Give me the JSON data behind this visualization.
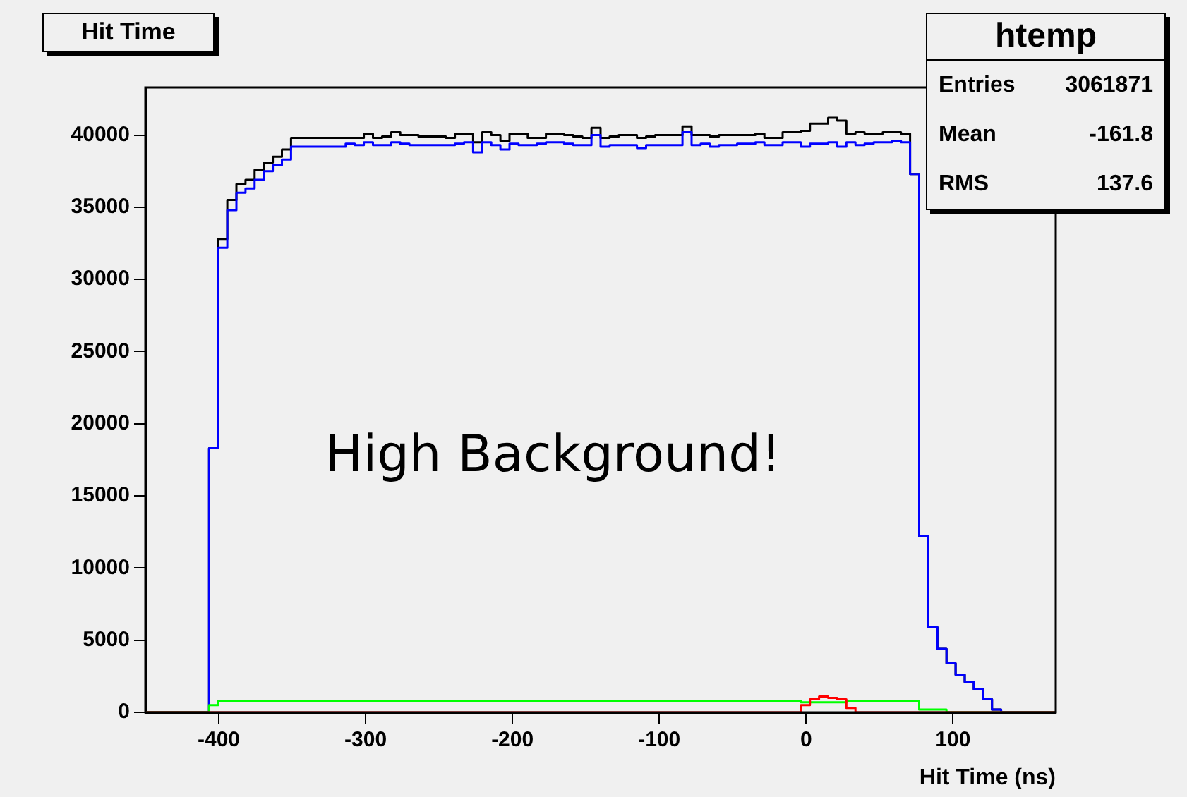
{
  "chart_data": {
    "type": "histogram",
    "title": "Hit Time",
    "xlabel": "Hit Time (ns)",
    "annotations": [
      "High Background!",
      "htemp",
      "Entries",
      "3061871",
      "Mean",
      "-161.8",
      "RMS",
      "137.6"
    ],
    "bins": [
      -450,
      -443.8,
      -437.6,
      -431.4,
      -425.2,
      -419,
      -412.8,
      -406.6,
      -400.4,
      -394.2,
      -388,
      -381.8,
      -375.6,
      -369.4,
      -363.2,
      -357,
      -350.8,
      -344.6,
      -338.4,
      -332.2,
      -326,
      -319.8,
      -313.6,
      -307.4,
      -301.2,
      -295,
      -288.8,
      -282.6,
      -276.4,
      -270.2,
      -264,
      -257.8,
      -251.6,
      -245.4,
      -239.2,
      -233,
      -226.8,
      -220.6,
      -214.4,
      -208.2,
      -202,
      -195.8,
      -189.6,
      -183.4,
      -177.2,
      -171,
      -164.8,
      -158.6,
      -152.4,
      -146.2,
      -140,
      -133.8,
      -127.6,
      -121.4,
      -115.2,
      -109,
      -102.8,
      -96.6,
      -90.4,
      -84.2,
      -78,
      -71.8,
      -65.6,
      -59.4,
      -53.2,
      -47,
      -40.8,
      -34.6,
      -28.4,
      -22.2,
      -16,
      -9.8,
      -3.6,
      2.6,
      8.8,
      15,
      21.2,
      27.4,
      33.6,
      39.8,
      46,
      52.2,
      58.4,
      64.6,
      70.8,
      77,
      83.2,
      89.4,
      95.6,
      101.8,
      108,
      114.2,
      120.4,
      126.6,
      132.8,
      139,
      145.2,
      151.4,
      157.6,
      163.8,
      170
    ],
    "series": [
      {
        "color": "#000000",
        "values": [
          0,
          0,
          0,
          0,
          0,
          0,
          0,
          18300,
          32800,
          35500,
          36600,
          36900,
          37600,
          38100,
          38500,
          39000,
          39800,
          39800,
          39800,
          39800,
          39800,
          39800,
          39800,
          39800,
          40100,
          39800,
          39900,
          40200,
          40000,
          40000,
          39900,
          39900,
          39900,
          39800,
          40100,
          40100,
          39500,
          40200,
          40000,
          39600,
          40100,
          40100,
          39800,
          39800,
          40100,
          40100,
          40000,
          39900,
          39800,
          40500,
          39800,
          39900,
          40000,
          40000,
          39800,
          39900,
          40000,
          40000,
          40000,
          40600,
          40000,
          40000,
          39900,
          40000,
          40000,
          40000,
          40000,
          40100,
          39800,
          39800,
          40200,
          40200,
          40300,
          40800,
          40800,
          41200,
          41000,
          40100,
          40200,
          40100,
          40100,
          40200,
          40200,
          40100,
          37300,
          12200,
          5900,
          4400,
          3400,
          2600,
          2100,
          1600,
          900,
          200,
          0,
          0,
          0,
          0,
          0,
          0
        ]
      },
      {
        "color": "#0000ff",
        "values": [
          0,
          0,
          0,
          0,
          0,
          0,
          0,
          18300,
          32200,
          34800,
          36000,
          36300,
          36900,
          37500,
          37900,
          38300,
          39200,
          39200,
          39200,
          39200,
          39200,
          39200,
          39400,
          39300,
          39500,
          39300,
          39300,
          39500,
          39400,
          39300,
          39300,
          39300,
          39300,
          39300,
          39400,
          39500,
          38800,
          39500,
          39300,
          39000,
          39400,
          39300,
          39300,
          39400,
          39500,
          39500,
          39400,
          39300,
          39300,
          40000,
          39200,
          39300,
          39300,
          39300,
          39100,
          39300,
          39300,
          39300,
          39300,
          40200,
          39300,
          39400,
          39200,
          39300,
          39300,
          39400,
          39400,
          39500,
          39300,
          39300,
          39500,
          39500,
          39200,
          39400,
          39400,
          39500,
          39200,
          39500,
          39300,
          39400,
          39500,
          39500,
          39600,
          39500,
          37300,
          12200,
          5900,
          4400,
          3400,
          2600,
          2100,
          1600,
          900,
          200,
          0,
          0,
          0,
          0,
          0,
          0
        ]
      },
      {
        "color": "#00ff00",
        "values": [
          0,
          0,
          0,
          0,
          0,
          0,
          0,
          500,
          800,
          800,
          800,
          800,
          800,
          800,
          800,
          800,
          800,
          800,
          800,
          800,
          800,
          800,
          800,
          800,
          800,
          800,
          800,
          800,
          800,
          800,
          800,
          800,
          800,
          800,
          800,
          800,
          800,
          800,
          800,
          800,
          800,
          800,
          800,
          800,
          800,
          800,
          800,
          800,
          800,
          800,
          800,
          800,
          800,
          800,
          800,
          800,
          800,
          800,
          800,
          800,
          800,
          800,
          800,
          800,
          800,
          800,
          800,
          800,
          800,
          800,
          800,
          800,
          700,
          700,
          700,
          700,
          700,
          800,
          800,
          800,
          800,
          800,
          800,
          800,
          800,
          200,
          200,
          200,
          0,
          0,
          0,
          0,
          0,
          0,
          0,
          0,
          0,
          0,
          0,
          0
        ]
      },
      {
        "color": "#ff0000",
        "values": [
          0,
          0,
          0,
          0,
          0,
          0,
          0,
          0,
          0,
          0,
          0,
          0,
          0,
          0,
          0,
          0,
          0,
          0,
          0,
          0,
          0,
          0,
          0,
          0,
          0,
          0,
          0,
          0,
          0,
          0,
          0,
          0,
          0,
          0,
          0,
          0,
          0,
          0,
          0,
          0,
          0,
          0,
          0,
          0,
          0,
          0,
          0,
          0,
          0,
          0,
          0,
          0,
          0,
          0,
          0,
          0,
          0,
          0,
          0,
          0,
          0,
          0,
          0,
          0,
          0,
          0,
          0,
          0,
          0,
          0,
          0,
          0,
          500,
          900,
          1100,
          1000,
          900,
          300,
          0,
          0,
          0,
          0,
          0,
          0,
          0,
          0,
          0,
          0,
          0,
          0,
          0,
          0,
          0,
          0,
          0,
          0,
          0,
          0,
          0,
          0
        ]
      }
    ],
    "xlim": [
      -450,
      170
    ],
    "xticks": [
      -400,
      -300,
      -200,
      -100,
      0,
      100
    ],
    "ylim": [
      0,
      43300
    ],
    "yticks": [
      0,
      5000,
      10000,
      15000,
      20000,
      25000,
      30000,
      35000,
      40000
    ],
    "grid": false,
    "legend": false
  }
}
